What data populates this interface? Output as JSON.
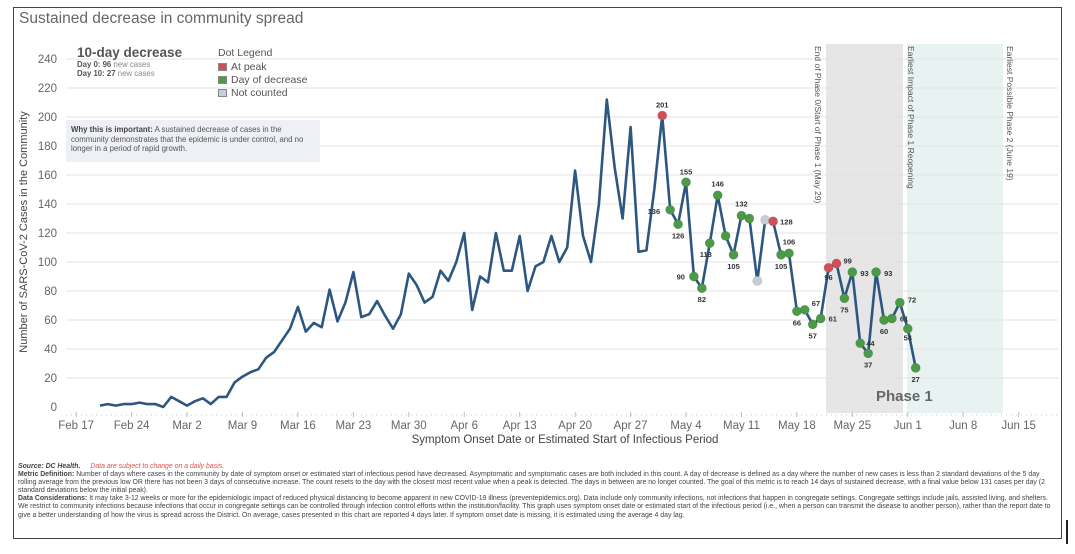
{
  "title": "Sustained decrease in community spread",
  "kpi": {
    "title": "10-day decrease",
    "day0_label": "Day 0:",
    "day0_value": "96",
    "day0_suffix": "new cases",
    "day10_label": "Day 10:",
    "day10_value": "27",
    "day10_suffix": "new cases"
  },
  "legend": {
    "title": "Dot Legend",
    "items": [
      {
        "label": "At peak",
        "color": "#d0505a"
      },
      {
        "label": "Day of decrease",
        "color": "#4a9a48"
      },
      {
        "label": "Not counted",
        "color": "#c7cdd6"
      }
    ]
  },
  "why": {
    "lead": "Why this is important:",
    "text": "A sustained decrease of cases in the community demonstrates that the epidemic is under control, and no longer in a period of rapid growth."
  },
  "annotations": [
    {
      "label": "End of Phase 0/Start of Phase 1 (May 29)"
    },
    {
      "label": "Earliest Impact of Phase 1 Reopening"
    },
    {
      "label": "Earliest Possible Phase 2 (June 19)"
    }
  ],
  "phase_label": "Phase 1",
  "colors": {
    "line": "#2d5680",
    "peak": "#d0505a",
    "decrease": "#4a9a48",
    "not_counted": "#c7cdd6",
    "phase0_band": "#e6e6e6",
    "phase1_band": "#e8f3f1"
  },
  "footer": {
    "source": "Source: DC Health.",
    "warning": "Data are subject to change on a daily basis.",
    "metric_lead": "Metric Definition:",
    "metric_text": "Number of days where cases in the community by date of symptom onset or estimated start of infectious period have decreased. Asymptomatic and symptomatic cases are both included in this count. A day of decrease is defined as a day where the number of new cases is less than 2 standard deviations of the 5 day rolling average from the previous low OR there has not been 3 days of consecutive increase. The count resets to the day with the closest most recent value when a peak is detected. The days in between are no longer counted. The goal of this metric is to reach 14 days of sustained decrease, with a final value below 131 cases per day (2 standard deviations below the initial peak).",
    "data_lead": "Data Considerations:",
    "data_text": "It may take 3-12 weeks or more for the epidemiologic impact of reduced physical distancing to become apparent in new COVID-19 illness (preventepidemics.org). Data include only community infections, not infections that happen in congregate settings. Congregate settings include jails, assisted living, and shelters. We restrict to community infections because infections that occur in congregate settings can be controlled through infection control efforts within the institution/facility. This graph uses symptom onset date or estimated start of the infectious period (i.e., when a person can transmit the disease to another person), rather than the report date to give a better understanding of how the virus is spread across the District. On average, cases presented in this chart are reported 4 days later. If symptom onset date is missing, it is estimated using the average 4 day lag."
  },
  "chart_data": {
    "type": "line",
    "title": "Sustained decrease in community spread",
    "xlabel": "Symptom Onset Date or Estimated Start of Infectious Period",
    "ylabel": "Number of SARS-CoV-2 Cases in the Community",
    "ylim": [
      0,
      240
    ],
    "yticks": [
      0,
      20,
      40,
      60,
      80,
      100,
      120,
      140,
      160,
      180,
      200,
      220,
      240
    ],
    "xlim": [
      "2020-02-14",
      "2020-06-19"
    ],
    "xtick_labels": [
      "Feb 17",
      "Feb 24",
      "Mar 2",
      "Mar 9",
      "Mar 16",
      "Mar 23",
      "Mar 30",
      "Apr 6",
      "Apr 13",
      "Apr 20",
      "Apr 27",
      "May 4",
      "May 11",
      "May 18",
      "May 25",
      "Jun 1",
      "Jun 8",
      "Jun 15"
    ],
    "xtick_dates": [
      "2020-02-17",
      "2020-02-24",
      "2020-03-02",
      "2020-03-09",
      "2020-03-16",
      "2020-03-23",
      "2020-03-30",
      "2020-04-06",
      "2020-04-13",
      "2020-04-20",
      "2020-04-27",
      "2020-05-04",
      "2020-05-11",
      "2020-05-18",
      "2020-05-25",
      "2020-06-01",
      "2020-06-08",
      "2020-06-15"
    ],
    "grid": true,
    "start_date": "2020-02-20",
    "values": [
      1,
      2,
      1,
      2,
      2,
      3,
      2,
      2,
      0,
      7,
      4,
      1,
      4,
      6,
      2,
      7,
      7,
      17,
      21,
      24,
      26,
      34,
      38,
      46,
      54,
      69,
      52,
      58,
      55,
      81,
      59,
      72,
      93,
      62,
      64,
      73,
      63,
      54,
      64,
      92,
      84,
      72,
      76,
      94,
      87,
      100,
      120,
      67,
      90,
      86,
      120,
      94,
      94,
      118,
      80,
      97,
      100,
      118,
      100,
      110,
      163,
      118,
      100,
      140,
      212,
      165,
      130,
      193,
      107,
      108,
      150,
      201,
      136,
      126,
      155,
      90,
      82,
      113,
      146,
      118,
      105,
      132,
      130,
      87,
      129,
      128,
      105,
      106,
      66,
      67,
      57,
      61,
      96,
      99,
      75,
      93,
      44,
      37,
      93,
      60,
      61,
      72,
      54,
      27
    ],
    "dots": [
      {
        "date": "2020-05-01",
        "value": 201,
        "status": "peak",
        "label": "201"
      },
      {
        "date": "2020-05-02",
        "value": 136,
        "status": "decrease",
        "label": "136"
      },
      {
        "date": "2020-05-03",
        "value": 126,
        "status": "decrease",
        "label": "126"
      },
      {
        "date": "2020-05-04",
        "value": 155,
        "status": "decrease",
        "label": "155"
      },
      {
        "date": "2020-05-05",
        "value": 90,
        "status": "decrease",
        "label": "90"
      },
      {
        "date": "2020-05-06",
        "value": 82,
        "status": "decrease",
        "label": "82"
      },
      {
        "date": "2020-05-07",
        "value": 113,
        "status": "decrease",
        "label": "113"
      },
      {
        "date": "2020-05-08",
        "value": 146,
        "status": "decrease",
        "label": "146"
      },
      {
        "date": "2020-05-09",
        "value": 118,
        "status": "decrease",
        "label": ""
      },
      {
        "date": "2020-05-10",
        "value": 105,
        "status": "decrease",
        "label": "105"
      },
      {
        "date": "2020-05-11",
        "value": 132,
        "status": "decrease",
        "label": "132"
      },
      {
        "date": "2020-05-12",
        "value": 130,
        "status": "decrease",
        "label": ""
      },
      {
        "date": "2020-05-13",
        "value": 87,
        "status": "not_counted",
        "label": ""
      },
      {
        "date": "2020-05-14",
        "value": 129,
        "status": "not_counted",
        "label": ""
      },
      {
        "date": "2020-05-15",
        "value": 128,
        "status": "peak",
        "label": "128"
      },
      {
        "date": "2020-05-16",
        "value": 105,
        "status": "decrease",
        "label": "105"
      },
      {
        "date": "2020-05-17",
        "value": 106,
        "status": "decrease",
        "label": "106"
      },
      {
        "date": "2020-05-18",
        "value": 66,
        "status": "decrease",
        "label": "66"
      },
      {
        "date": "2020-05-19",
        "value": 67,
        "status": "decrease",
        "label": "67"
      },
      {
        "date": "2020-05-20",
        "value": 57,
        "status": "decrease",
        "label": "57"
      },
      {
        "date": "2020-05-21",
        "value": 61,
        "status": "decrease",
        "label": "61"
      },
      {
        "date": "2020-05-22",
        "value": 96,
        "status": "peak",
        "label": "96"
      },
      {
        "date": "2020-05-23",
        "value": 99,
        "status": "peak",
        "label": "99"
      },
      {
        "date": "2020-05-24",
        "value": 75,
        "status": "decrease",
        "label": "75"
      },
      {
        "date": "2020-05-25",
        "value": 93,
        "status": "decrease",
        "label": "93"
      },
      {
        "date": "2020-05-26",
        "value": 44,
        "status": "decrease",
        "label": "44"
      },
      {
        "date": "2020-05-27",
        "value": 37,
        "status": "decrease",
        "label": "37"
      },
      {
        "date": "2020-05-28",
        "value": 93,
        "status": "decrease",
        "label": "93"
      },
      {
        "date": "2020-05-29",
        "value": 60,
        "status": "decrease",
        "label": "60"
      },
      {
        "date": "2020-05-30",
        "value": 61,
        "status": "decrease",
        "label": "61"
      },
      {
        "date": "2020-05-31",
        "value": 72,
        "status": "decrease",
        "label": "72"
      },
      {
        "date": "2020-06-01",
        "value": 54,
        "status": "decrease",
        "label": "54"
      },
      {
        "date": "2020-06-02",
        "value": 27,
        "status": "decrease",
        "label": "27"
      }
    ],
    "bands": [
      {
        "name": "phase0-end",
        "from": "2020-05-22",
        "to": "2020-05-31",
        "color": "#e6e6e6"
      },
      {
        "name": "phase1-impact",
        "from": "2020-06-01",
        "to": "2020-06-12",
        "color": "#e8f3f1"
      }
    ],
    "legend": "top-left"
  }
}
